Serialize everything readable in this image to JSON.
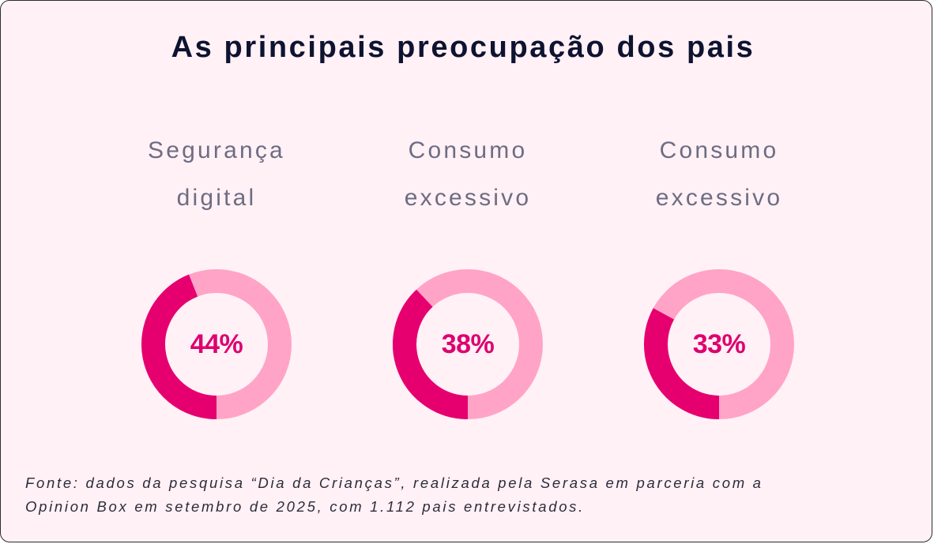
{
  "title": "As principais preocupação dos pais",
  "colors": {
    "background": "#fff1f6",
    "track": "#ffa4c6",
    "value": "#e6006f",
    "percent_text": "#dd0070"
  },
  "chart_data": {
    "type": "pie",
    "variant": "donut",
    "title": "As principais preocupação dos pais",
    "unit": "%",
    "max": 100,
    "items": [
      {
        "label_lines": [
          "Segurança",
          "digital"
        ],
        "value": 44,
        "display": "44%"
      },
      {
        "label_lines": [
          "Consumo",
          "excessivo"
        ],
        "value": 38,
        "display": "38%"
      },
      {
        "label_lines": [
          "Consumo",
          "excessivo"
        ],
        "value": 33,
        "display": "33%"
      }
    ]
  },
  "source": {
    "line1": "Fonte: dados da pesquisa “Dia da Crianças”, realizada pela Serasa em parceria com a",
    "line2": "Opinion Box em setembro de 2025, com 1.112 pais entrevistados."
  }
}
